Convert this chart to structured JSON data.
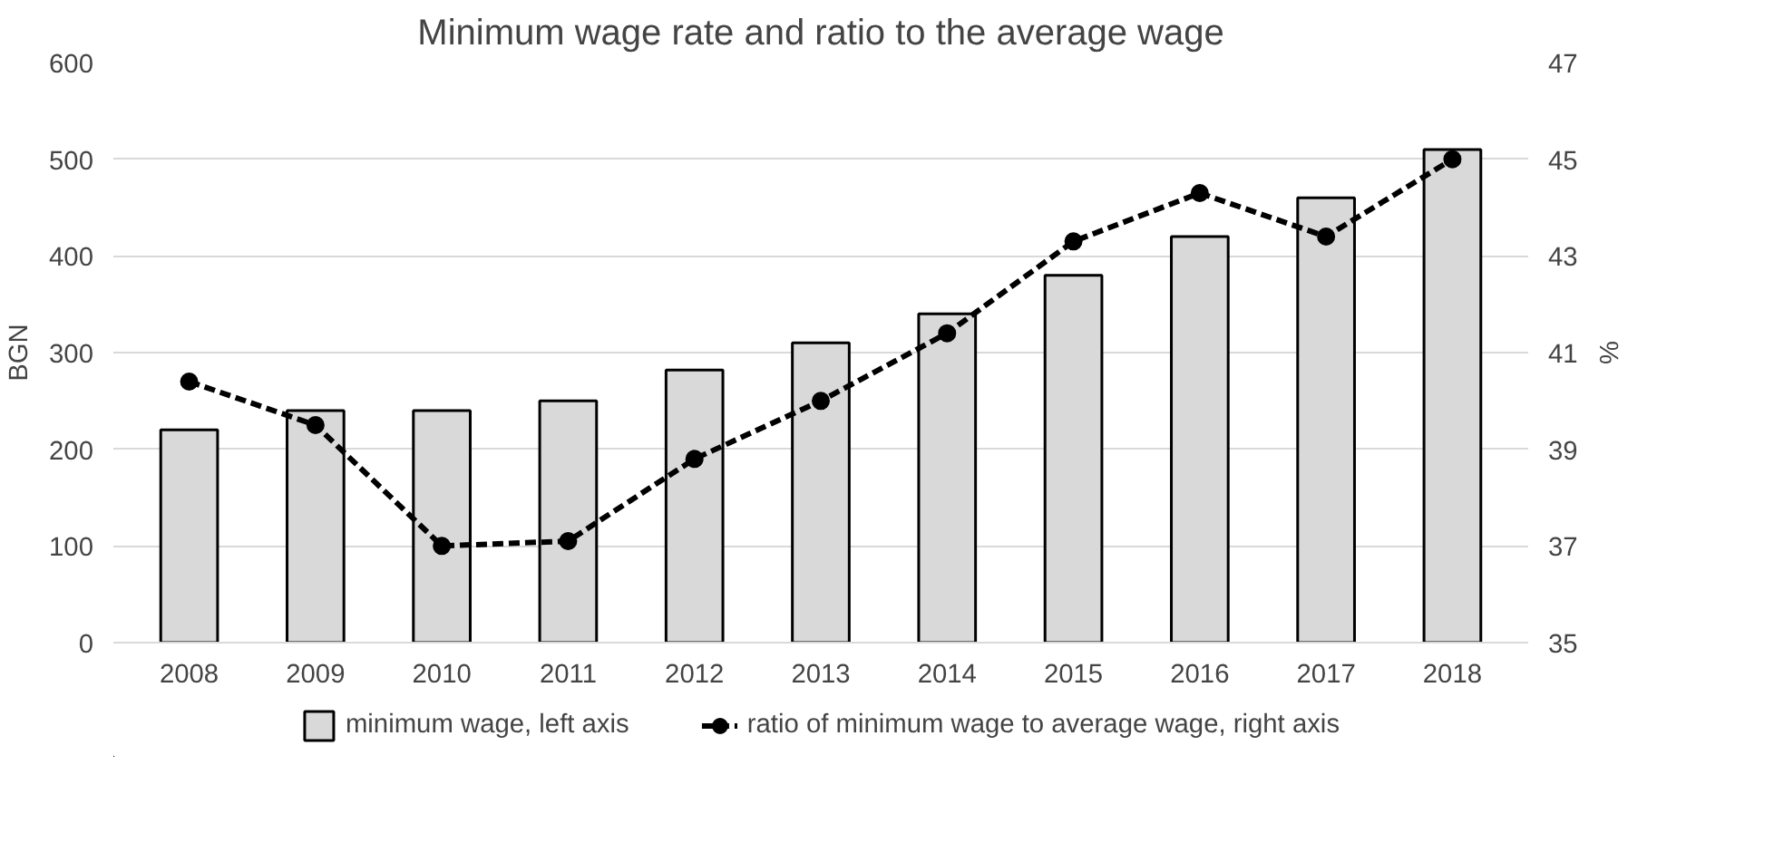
{
  "chart_data": {
    "type": "bar",
    "title": "Minimum wage rate and ratio to the average wage",
    "categories": [
      "2008",
      "2009",
      "2010",
      "2011",
      "2012",
      "2013",
      "2014",
      "2015",
      "2016",
      "2017",
      "2018"
    ],
    "series": [
      {
        "name": "minimum wage, left axis",
        "color": "#d9d9d9",
        "values": [
          220,
          240,
          240,
          250,
          282,
          310,
          340,
          380,
          420,
          460,
          510
        ]
      },
      {
        "name": "ratio of minimum wage to average wage, right axis",
        "type": "line",
        "axis": "y2",
        "color": "#000000",
        "marker": "circle",
        "line_style": "dashed",
        "values": [
          40.4,
          39.5,
          37.0,
          37.1,
          38.8,
          40.0,
          41.4,
          43.3,
          44.3,
          43.4,
          45.0
        ]
      }
    ],
    "ylabel": "BGN",
    "y2label": "%",
    "ylim": [
      0,
      600
    ],
    "yticks": [
      0,
      100,
      200,
      300,
      400,
      500,
      600
    ],
    "y2lim": [
      35,
      47
    ],
    "y2ticks": [
      35,
      37,
      39,
      41,
      43,
      45,
      47
    ],
    "grid": "y",
    "legend": "bottom"
  }
}
